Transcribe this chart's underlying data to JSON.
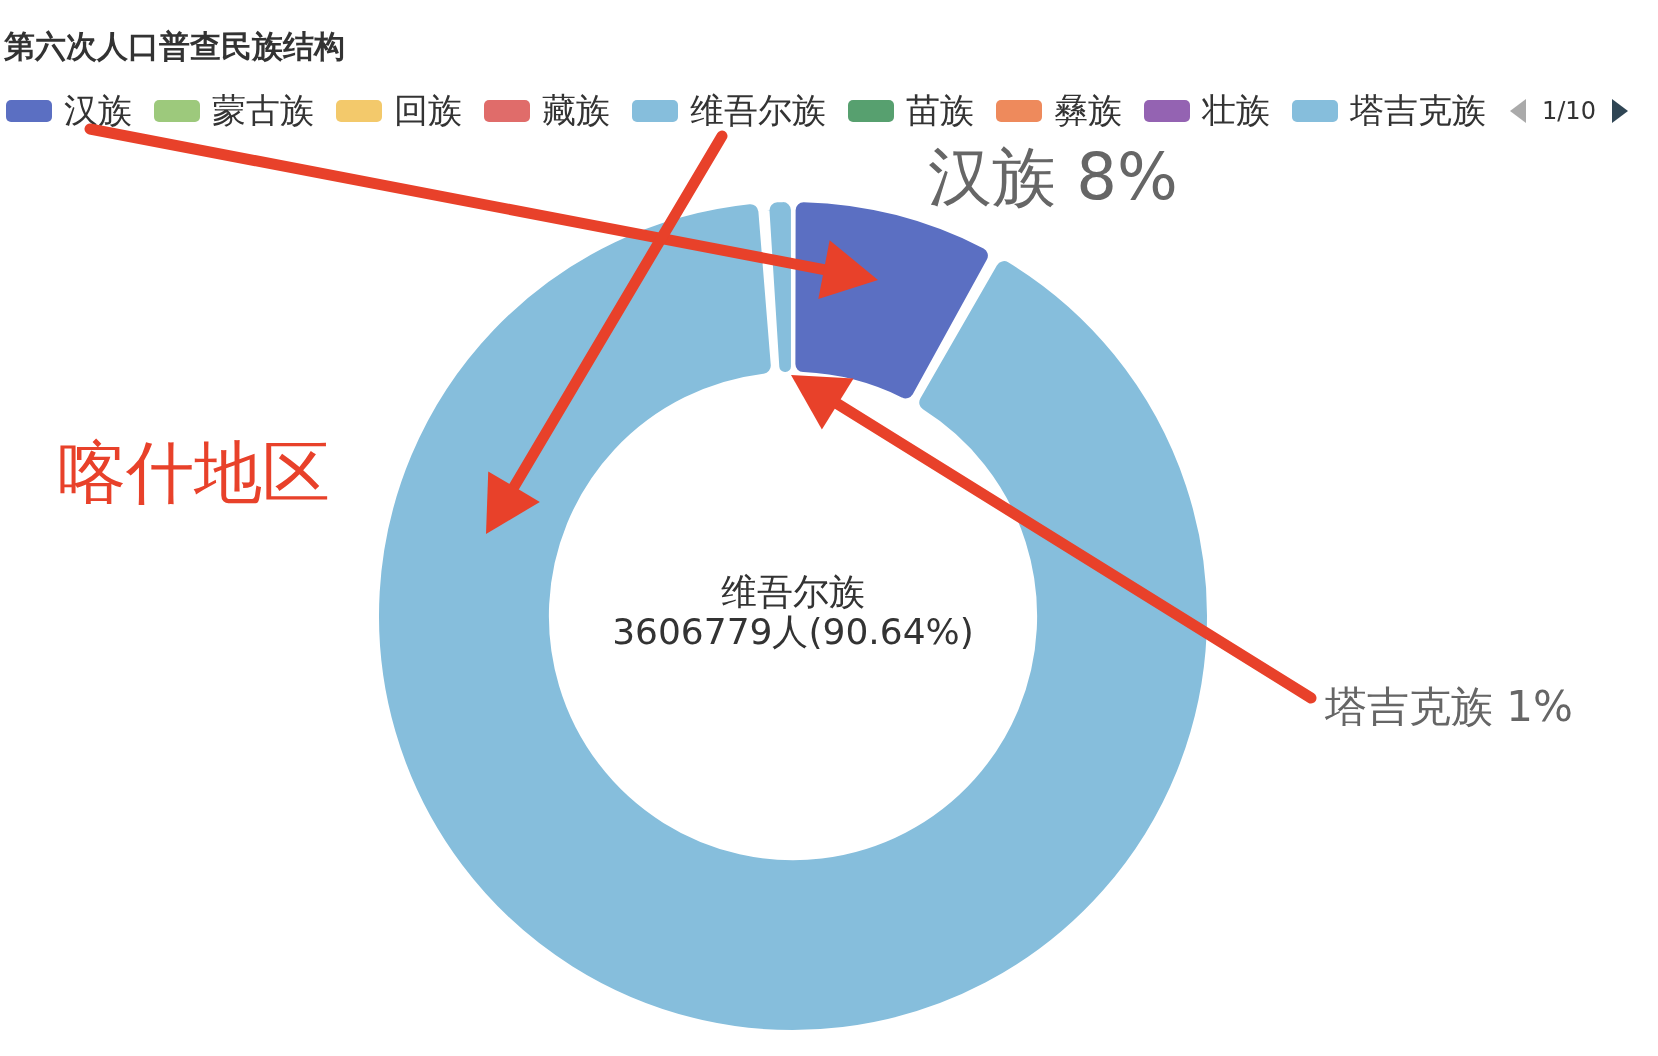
{
  "chart_data": {
    "type": "donut",
    "title": "第六次人口普查民族结构",
    "categories": [
      "汉族",
      "蒙古族",
      "回族",
      "藏族",
      "维吾尔族",
      "苗族",
      "彝族",
      "壮族",
      "塔吉克族"
    ],
    "values": [
      8,
      0,
      0,
      0,
      90.64,
      0,
      0,
      0,
      1
    ],
    "colors": [
      "#5b6fc2",
      "#9dc97c",
      "#f3c96b",
      "#e06c6a",
      "#86bedc",
      "#57a06f",
      "#ee8a5c",
      "#9463b2",
      "#86bedc"
    ],
    "value_labels": [
      "汉族 8%",
      null,
      null,
      null,
      null,
      null,
      null,
      null,
      null
    ],
    "legend": "top left",
    "annotations": [
      "喀什地区",
      "维吾尔族\n3606779人(90.64%)",
      "1/10",
      "塔吉克族 1%"
    ]
  }
}
